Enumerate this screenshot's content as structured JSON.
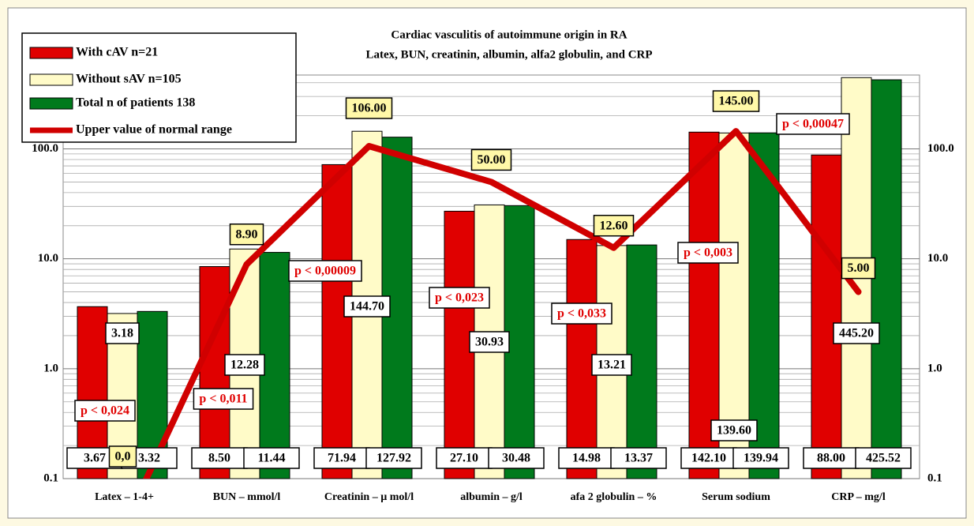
{
  "chart_data": {
    "type": "bar",
    "title": "Cardiac vasculitis of autoimmune origin in RA",
    "subtitle": "Latex, BUN, creatinin, albumin, alfa2 globulin, and CRP",
    "categories": [
      "Latex – 1-4+",
      "BUN – mmol/l",
      "Creatinin – µ mol/l",
      "albumin – g/l",
      "afa 2 globulin – %",
      "Serum sodium",
      "CRP – mg/l"
    ],
    "series": [
      {
        "name": "With cAV n=21",
        "color": "#e00000",
        "values": [
          3.67,
          8.5,
          71.94,
          27.1,
          14.98,
          142.1,
          88.0
        ],
        "value_labels": [
          "3.67",
          "8.50",
          "71.94",
          "27.10",
          "14.98",
          "142.10",
          "88.00"
        ]
      },
      {
        "name": "Without sAV n=105",
        "color": "#fffbc8",
        "values": [
          3.18,
          12.28,
          144.7,
          30.93,
          13.21,
          139.6,
          445.2
        ],
        "value_labels": [
          "3.18",
          "12.28",
          "144.70",
          "30.93",
          "13.21",
          "139.60",
          "445.20"
        ]
      },
      {
        "name": "Total n of patients 138",
        "color": "#007a1c",
        "values": [
          3.32,
          11.44,
          127.92,
          30.48,
          13.37,
          139.94,
          425.52
        ],
        "value_labels": [
          "3.32",
          "11.44",
          "127.92",
          "30.48",
          "13.37",
          "139.94",
          "425.52"
        ]
      },
      {
        "name": "Upper value of normal range",
        "type": "line",
        "color": "#d00000",
        "values": [
          0,
          8.9,
          106.0,
          50.0,
          12.6,
          145.0,
          5.0
        ],
        "value_labels": [
          "0,0",
          "8.90",
          "106.00",
          "50.00",
          "12.60",
          "145.00",
          "5.00"
        ]
      }
    ],
    "annotations": [
      "p < 0,024",
      "p < 0,011",
      "p < 0,00009",
      "p < 0,023",
      "p < 0,033",
      "p < 0,003",
      "p < 0,00047"
    ],
    "log_scale": true,
    "ylim": [
      0.1,
      470
    ],
    "yticks": [
      {
        "value": 0.1,
        "label": "0.1"
      },
      {
        "value": 1,
        "label": "1.0"
      },
      {
        "value": 10,
        "label": "10.0"
      },
      {
        "value": 100,
        "label": "100.0"
      }
    ],
    "grid": true,
    "legend": "upper left"
  }
}
